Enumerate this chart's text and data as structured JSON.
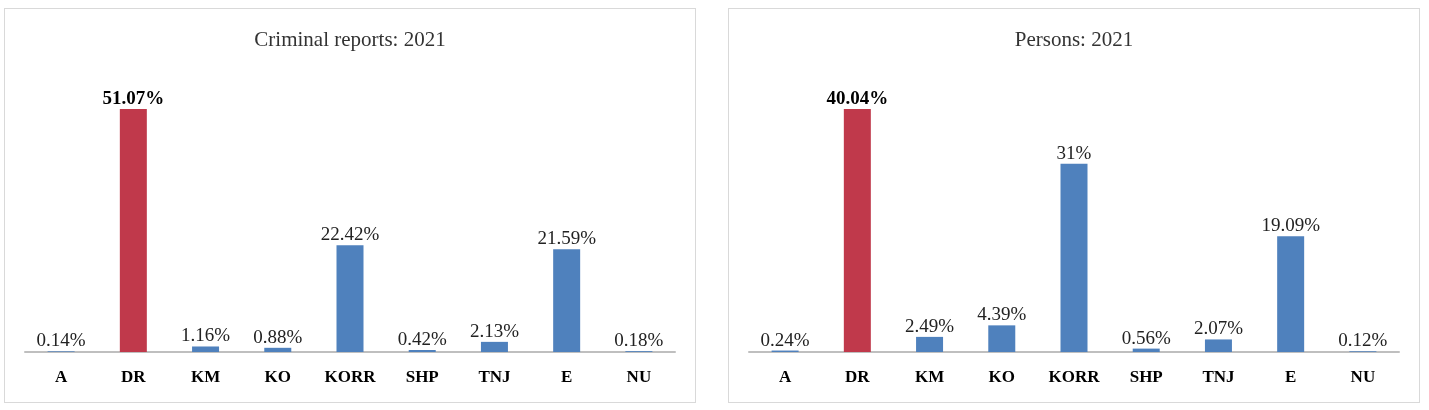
{
  "chart_data": [
    {
      "type": "bar",
      "title": "Criminal reports: 2021",
      "categories": [
        "A",
        "DR",
        "KM",
        "KO",
        "KORR",
        "SHP",
        "TNJ",
        "E",
        "NU"
      ],
      "values": [
        0.14,
        51.07,
        1.16,
        0.88,
        22.42,
        0.42,
        2.13,
        21.59,
        0.18
      ],
      "colors": [
        "#4f81bd",
        "#c0394b",
        "#4f81bd",
        "#4f81bd",
        "#4f81bd",
        "#4f81bd",
        "#4f81bd",
        "#4f81bd",
        "#4f81bd"
      ],
      "value_labels": [
        "0.14%",
        "51.07%",
        "1.16%",
        "0.88%",
        "22.42%",
        "0.42%",
        "2.13%",
        "21.59%",
        "0.18%"
      ]
    },
    {
      "type": "bar",
      "title": "Persons: 2021",
      "categories": [
        "A",
        "DR",
        "KM",
        "KO",
        "KORR",
        "SHP",
        "TNJ",
        "E",
        "NU"
      ],
      "values": [
        0.24,
        40.04,
        2.49,
        4.39,
        31,
        0.56,
        2.07,
        19.09,
        0.12
      ],
      "colors": [
        "#4f81bd",
        "#c0394b",
        "#4f81bd",
        "#4f81bd",
        "#4f81bd",
        "#4f81bd",
        "#4f81bd",
        "#4f81bd",
        "#4f81bd"
      ],
      "value_labels": [
        "0.24%",
        "40.04%",
        "2.49%",
        "4.39%",
        "31%",
        "0.56%",
        "2.07%",
        "19.09%",
        "0.12%"
      ]
    }
  ]
}
